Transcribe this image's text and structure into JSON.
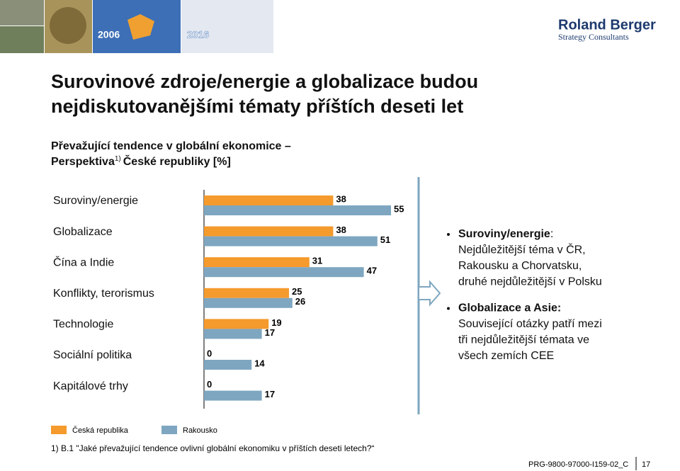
{
  "header": {
    "years": [
      "2006",
      "2016"
    ],
    "logo": "Roland Berger",
    "logo_sub": "Strategy Consultants"
  },
  "title": [
    "Surovinové zdroje/energie a globalizace budou",
    "nejdiskutovanějšími tématy příštích deseti let"
  ],
  "subtitle": {
    "line1": "Převažující tendence v globální ekonomice –",
    "line2_start": "Perspektiva",
    "note": "1)",
    "line2_end": "České republiky [%]"
  },
  "chart_data": {
    "type": "bar",
    "orientation": "horizontal",
    "categories": [
      "Suroviny/energie",
      "Globalizace",
      "Čína a Indie",
      "Konflikty, terorismus",
      "Technologie",
      "Sociální politika",
      "Kapitálové trhy"
    ],
    "series": [
      {
        "name": "Česká republika",
        "color": "#f59a2c",
        "values": [
          38,
          38,
          31,
          25,
          19,
          0,
          0
        ]
      },
      {
        "name": "Rakousko",
        "color": "#7ea6c0",
        "values": [
          55,
          51,
          47,
          26,
          17,
          14,
          17
        ]
      }
    ]
  },
  "bullets": [
    {
      "bold": "Suroviny/energie",
      "colon": ":",
      "lines": [
        "Nejdůležitější téma v ČR,",
        "Rakousku a Chorvatsku,",
        "druhé nejdůležitější v Polsku"
      ]
    },
    {
      "bold": "Globalizace a Asie:",
      "lines": [
        "Související otázky patří mezi",
        "tři nejdůležitější témata ve",
        "všech zemích CEE"
      ]
    }
  ],
  "footnote": "1) B.1 \"Jaké převažující tendence ovlivní globální ekonomiku v příštích deseti letech?“",
  "footer": {
    "code": "PRG-9800-97000-I159-02_C",
    "page": "17"
  }
}
